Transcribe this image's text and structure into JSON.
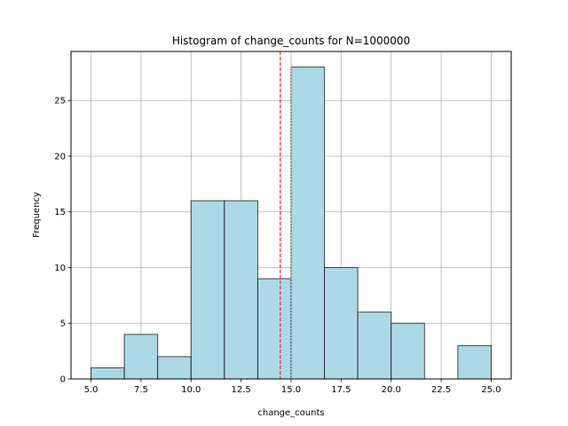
{
  "chart_data": {
    "type": "bar",
    "title": "Histogram of change_counts for N=1000000",
    "xlabel": "change_counts",
    "ylabel": "Frequency",
    "xlim": [
      4.0,
      26.0
    ],
    "ylim": [
      0,
      29.4
    ],
    "xticks": [
      "5.0",
      "7.5",
      "10.0",
      "12.5",
      "15.0",
      "17.5",
      "20.0",
      "22.5",
      "25.0"
    ],
    "yticks": [
      "0",
      "5",
      "10",
      "15",
      "20",
      "25"
    ],
    "grid": true,
    "bin_edges": [
      5.0,
      6.6667,
      8.3333,
      10.0,
      11.6667,
      13.3333,
      15.0,
      16.6667,
      18.3333,
      20.0,
      21.6667,
      23.3333,
      25.0
    ],
    "values": [
      1,
      4,
      2,
      16,
      16,
      9,
      28,
      10,
      6,
      5,
      0,
      3
    ],
    "bar_color": "#add8e6",
    "edge_color": "#000000",
    "reference_lines": [
      {
        "x": 14.46,
        "color": "#ff0000",
        "style": "dashed"
      },
      {
        "x": 15.0,
        "color": "#aaaaaa",
        "style": "dotted"
      }
    ]
  }
}
